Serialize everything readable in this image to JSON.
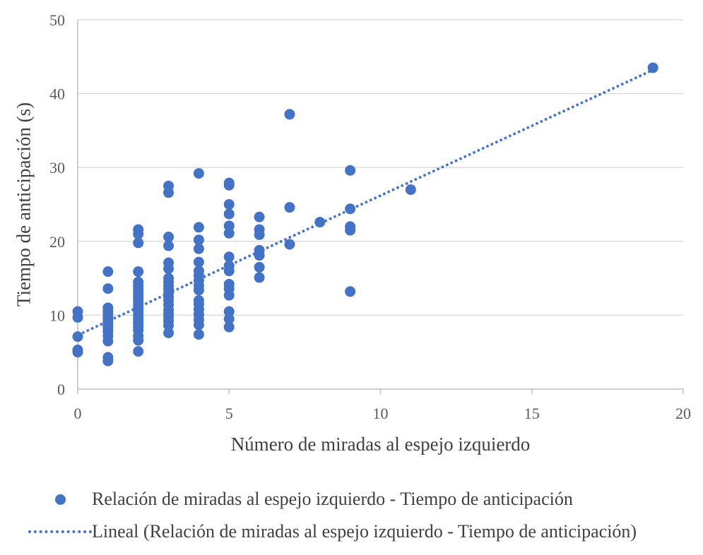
{
  "chart_data": {
    "type": "scatter",
    "title": "",
    "xlabel": "Número de miradas al espejo izquierdo",
    "ylabel": "Tiempo de anticipación (s)",
    "xlim": [
      0,
      20
    ],
    "ylim": [
      0,
      50
    ],
    "xticks": [
      0,
      5,
      10,
      15,
      20
    ],
    "yticks": [
      0,
      10,
      20,
      30,
      40,
      50
    ],
    "grid": "horizontal",
    "legend_position": "bottom",
    "colors": {
      "points": "#4472C4",
      "trendline": "#4472C4",
      "grid": "#D9D9D9",
      "axis": "#BFBFBF"
    },
    "series": [
      {
        "name": "Relación de miradas al espejo izquierdo - Tiempo de anticipación",
        "marker": "circle",
        "points": [
          [
            0,
            10.5
          ],
          [
            0,
            9.7
          ],
          [
            0,
            7.1
          ],
          [
            0,
            5.3
          ],
          [
            0,
            5.0
          ],
          [
            1,
            15.9
          ],
          [
            1,
            13.6
          ],
          [
            1,
            11.0
          ],
          [
            1,
            10.6
          ],
          [
            1,
            10.2
          ],
          [
            1,
            9.8
          ],
          [
            1,
            9.4
          ],
          [
            1,
            9.0
          ],
          [
            1,
            8.6
          ],
          [
            1,
            8.2
          ],
          [
            1,
            7.8
          ],
          [
            1,
            7.2
          ],
          [
            1,
            6.5
          ],
          [
            1,
            4.3
          ],
          [
            1,
            3.8
          ],
          [
            2,
            21.6
          ],
          [
            2,
            21.0
          ],
          [
            2,
            19.8
          ],
          [
            2,
            15.9
          ],
          [
            2,
            14.5
          ],
          [
            2,
            14.0
          ],
          [
            2,
            13.5
          ],
          [
            2,
            13.0
          ],
          [
            2,
            12.5
          ],
          [
            2,
            12.0
          ],
          [
            2,
            11.5
          ],
          [
            2,
            11.0
          ],
          [
            2,
            10.5
          ],
          [
            2,
            10.0
          ],
          [
            2,
            9.5
          ],
          [
            2,
            9.0
          ],
          [
            2,
            8.5
          ],
          [
            2,
            8.0
          ],
          [
            2,
            7.2
          ],
          [
            2,
            6.6
          ],
          [
            2,
            5.1
          ],
          [
            3,
            27.5
          ],
          [
            3,
            26.6
          ],
          [
            3,
            20.6
          ],
          [
            3,
            19.4
          ],
          [
            3,
            17.1
          ],
          [
            3,
            16.3
          ],
          [
            3,
            15.0
          ],
          [
            3,
            14.5
          ],
          [
            3,
            14.0
          ],
          [
            3,
            13.5
          ],
          [
            3,
            13.0
          ],
          [
            3,
            12.5
          ],
          [
            3,
            12.0
          ],
          [
            3,
            11.4
          ],
          [
            3,
            10.7
          ],
          [
            3,
            10.2
          ],
          [
            3,
            9.7
          ],
          [
            3,
            9.2
          ],
          [
            3,
            8.6
          ],
          [
            3,
            7.6
          ],
          [
            4,
            29.2
          ],
          [
            4,
            21.9
          ],
          [
            4,
            20.2
          ],
          [
            4,
            19.0
          ],
          [
            4,
            17.2
          ],
          [
            4,
            16.0
          ],
          [
            4,
            15.4
          ],
          [
            4,
            14.7
          ],
          [
            4,
            14.0
          ],
          [
            4,
            13.4
          ],
          [
            4,
            12.0
          ],
          [
            4,
            11.5
          ],
          [
            4,
            10.8
          ],
          [
            4,
            10.1
          ],
          [
            4,
            9.4
          ],
          [
            4,
            8.7
          ],
          [
            4,
            7.4
          ],
          [
            5,
            27.9
          ],
          [
            5,
            27.6
          ],
          [
            5,
            25.0
          ],
          [
            5,
            23.7
          ],
          [
            5,
            22.1
          ],
          [
            5,
            21.1
          ],
          [
            5,
            17.9
          ],
          [
            5,
            16.7
          ],
          [
            5,
            16.0
          ],
          [
            5,
            14.2
          ],
          [
            5,
            13.6
          ],
          [
            5,
            12.7
          ],
          [
            5,
            10.5
          ],
          [
            5,
            9.5
          ],
          [
            5,
            8.4
          ],
          [
            6,
            23.3
          ],
          [
            6,
            21.6
          ],
          [
            6,
            20.9
          ],
          [
            6,
            18.8
          ],
          [
            6,
            18.1
          ],
          [
            6,
            16.5
          ],
          [
            6,
            15.1
          ],
          [
            7,
            37.2
          ],
          [
            7,
            24.6
          ],
          [
            7,
            19.6
          ],
          [
            8,
            22.6
          ],
          [
            9,
            29.6
          ],
          [
            9,
            24.4
          ],
          [
            9,
            22.0
          ],
          [
            9,
            21.5
          ],
          [
            9,
            13.2
          ],
          [
            11,
            27.0
          ],
          [
            19,
            43.5
          ]
        ]
      },
      {
        "name": "Lineal (Relación de miradas al espejo izquierdo - Tiempo de anticipación)",
        "type": "trendline-linear",
        "line_style": "dotted",
        "points": [
          [
            0,
            7.3
          ],
          [
            19,
            43.2
          ]
        ]
      }
    ]
  }
}
